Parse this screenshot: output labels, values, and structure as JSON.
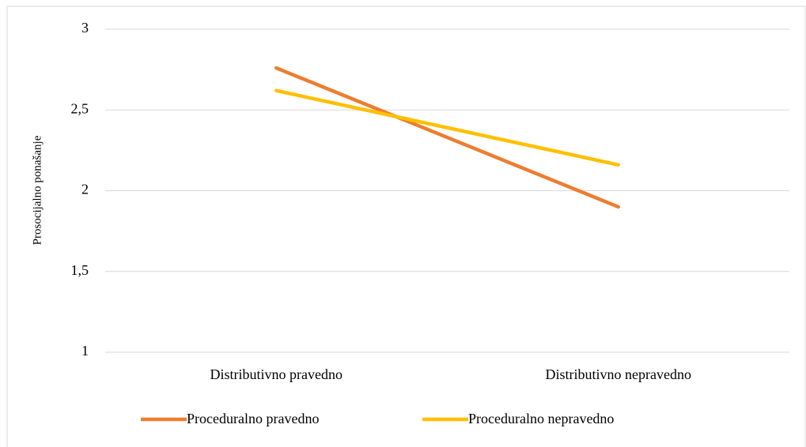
{
  "chart_data": {
    "type": "line",
    "y_label": "Prosocijalno ponašanje",
    "categories": [
      "Distributivno pravedno",
      "Distributivno nepravedno"
    ],
    "series": [
      {
        "name": "Proceduralno pravedno",
        "color": "#ed7d31",
        "values": [
          2.76,
          1.9
        ]
      },
      {
        "name": "Proceduralno nepravedno",
        "color": "#ffc000",
        "values": [
          2.62,
          2.16
        ]
      }
    ],
    "ylim": [
      1,
      3
    ],
    "yticks": [
      1,
      {
        "value": 1.5,
        "label": "1,5"
      },
      2,
      {
        "value": 2.5,
        "label": "2,5"
      },
      3
    ],
    "grid": true
  }
}
